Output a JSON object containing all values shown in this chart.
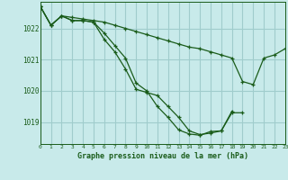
{
  "title": "Graphe pression niveau de la mer (hPa)",
  "bg_color": "#c8eaea",
  "grid_color": "#a0cccc",
  "line_color": "#1a5c1a",
  "marker_color": "#1a5c1a",
  "xlim": [
    0,
    23
  ],
  "ylim": [
    1018.3,
    1022.85
  ],
  "yticks": [
    1019,
    1020,
    1021,
    1022
  ],
  "xticks": [
    0,
    1,
    2,
    3,
    4,
    5,
    6,
    7,
    8,
    9,
    10,
    11,
    12,
    13,
    14,
    15,
    16,
    17,
    18,
    19,
    20,
    21,
    22,
    23
  ],
  "series": [
    [
      1022.7,
      1022.1,
      1022.4,
      1022.35,
      1022.3,
      1022.25,
      1022.2,
      1022.1,
      1022.0,
      1021.9,
      1021.8,
      1021.7,
      1021.6,
      1021.5,
      1021.4,
      1021.35,
      1021.25,
      1021.15,
      1021.05,
      1020.3,
      1020.2,
      1021.05,
      1021.15,
      1021.35
    ],
    [
      1022.7,
      1022.1,
      1022.4,
      1022.25,
      1022.25,
      1022.2,
      1021.85,
      1021.45,
      1021.05,
      1020.25,
      1020.0,
      1019.5,
      1019.15,
      1018.75,
      1018.62,
      1018.58,
      1018.7,
      1018.72,
      1019.35,
      null,
      null,
      null,
      null,
      null
    ],
    [
      1022.7,
      1022.1,
      1022.4,
      1022.25,
      1022.25,
      1022.2,
      1021.65,
      1021.25,
      1020.7,
      1020.05,
      1019.95,
      1019.85,
      1019.5,
      1019.15,
      1018.72,
      1018.6,
      1018.65,
      1018.72,
      1019.3,
      1019.3,
      null,
      null,
      null,
      null
    ]
  ]
}
